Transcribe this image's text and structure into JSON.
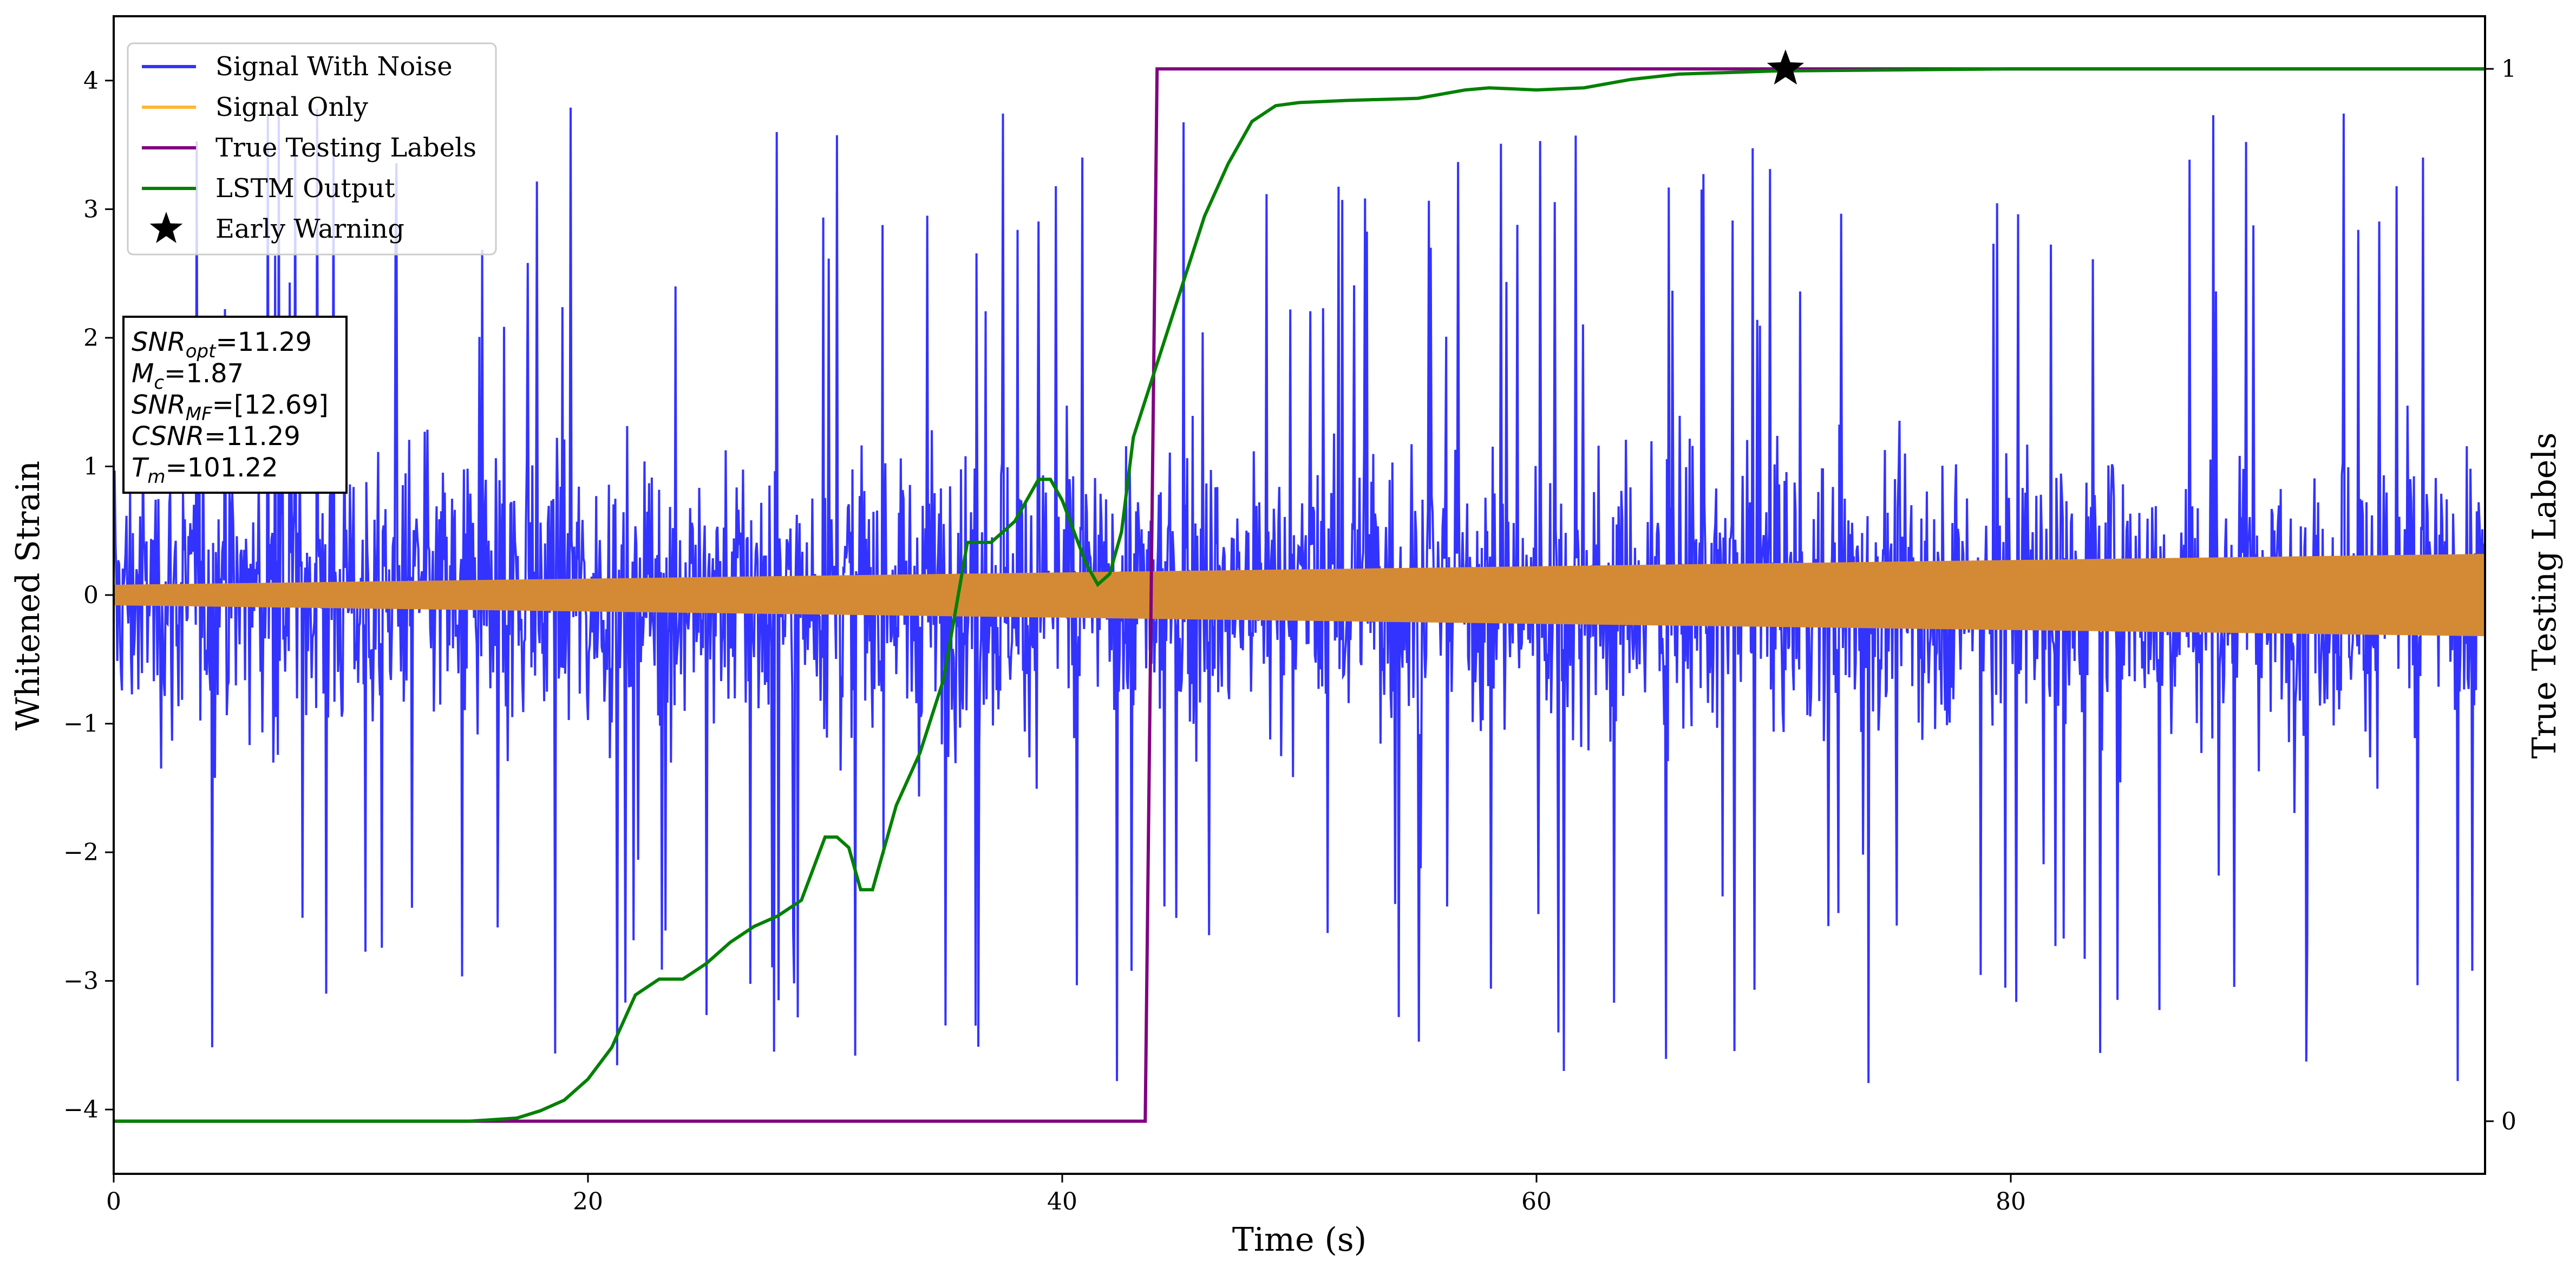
{
  "chart_data": {
    "type": "line",
    "title": "",
    "xlabel": "Time (s)",
    "ylabel": "Whitened Strain",
    "y2label": "True Testing Labels",
    "xlim": [
      0,
      100
    ],
    "ylim": [
      -4.5,
      4.5
    ],
    "y2lim": [
      -0.05,
      1.05
    ],
    "x_ticks": [
      0,
      20,
      40,
      60,
      80
    ],
    "y_ticks": [
      -4,
      -3,
      -2,
      -1,
      0,
      1,
      2,
      3,
      4
    ],
    "y2_ticks": [
      0,
      1
    ],
    "grid": false,
    "legend_position": "top-left",
    "series": [
      {
        "name": "Signal With Noise",
        "axis": "left",
        "color": "#3333ff",
        "description_values": {
          "typical_range": [
            -1.6,
            1.6
          ],
          "extremes": [
            -4.05,
            4.1
          ]
        }
      },
      {
        "name": "Signal Only",
        "axis": "left",
        "color": "#ffb732",
        "envelope": {
          "x": [
            0,
            100
          ],
          "amplitude": [
            0.08,
            0.32
          ]
        }
      },
      {
        "name": "True Testing Labels",
        "axis": "right",
        "color": "#800080",
        "x": [
          0,
          43.5,
          44.0,
          100
        ],
        "y": [
          0,
          0,
          1,
          1
        ]
      },
      {
        "name": "LSTM Output",
        "axis": "right",
        "color": "#008000",
        "x": [
          0,
          15,
          17,
          18,
          19,
          20,
          21,
          22,
          23,
          24,
          25,
          26,
          27,
          28,
          29,
          30,
          30.5,
          31,
          31.5,
          32,
          33,
          34,
          35,
          36,
          37,
          38,
          39,
          39.5,
          40,
          41,
          41.5,
          42,
          42.5,
          43,
          44,
          45,
          46,
          47,
          48,
          49,
          50,
          52,
          55,
          57,
          58,
          60,
          62,
          64,
          66,
          70,
          80,
          100
        ],
        "y": [
          0,
          0,
          0.003,
          0.01,
          0.02,
          0.04,
          0.07,
          0.12,
          0.135,
          0.135,
          0.15,
          0.17,
          0.185,
          0.195,
          0.21,
          0.27,
          0.27,
          0.26,
          0.22,
          0.22,
          0.3,
          0.35,
          0.42,
          0.55,
          0.55,
          0.57,
          0.61,
          0.61,
          0.59,
          0.53,
          0.51,
          0.52,
          0.56,
          0.65,
          0.72,
          0.79,
          0.86,
          0.91,
          0.95,
          0.965,
          0.968,
          0.97,
          0.972,
          0.98,
          0.982,
          0.98,
          0.982,
          0.99,
          0.995,
          0.998,
          1.0,
          1.0
        ]
      },
      {
        "name": "Early Warning",
        "axis": "right",
        "marker": "star",
        "color": "#000000",
        "x": [
          70.5
        ],
        "y": [
          1.0
        ]
      }
    ],
    "annotation": {
      "lines": [
        {
          "var": "SNR",
          "sub": "opt",
          "value": "=11.29"
        },
        {
          "var": "M",
          "sub": "c",
          "value": "=1.87"
        },
        {
          "var": "SNR",
          "sub": "MF",
          "value": "=[12.69]"
        },
        {
          "var": "CSNR",
          "sub": "",
          "value": "=11.29"
        },
        {
          "var": "T",
          "sub": "m",
          "value": "=101.22"
        }
      ]
    }
  }
}
